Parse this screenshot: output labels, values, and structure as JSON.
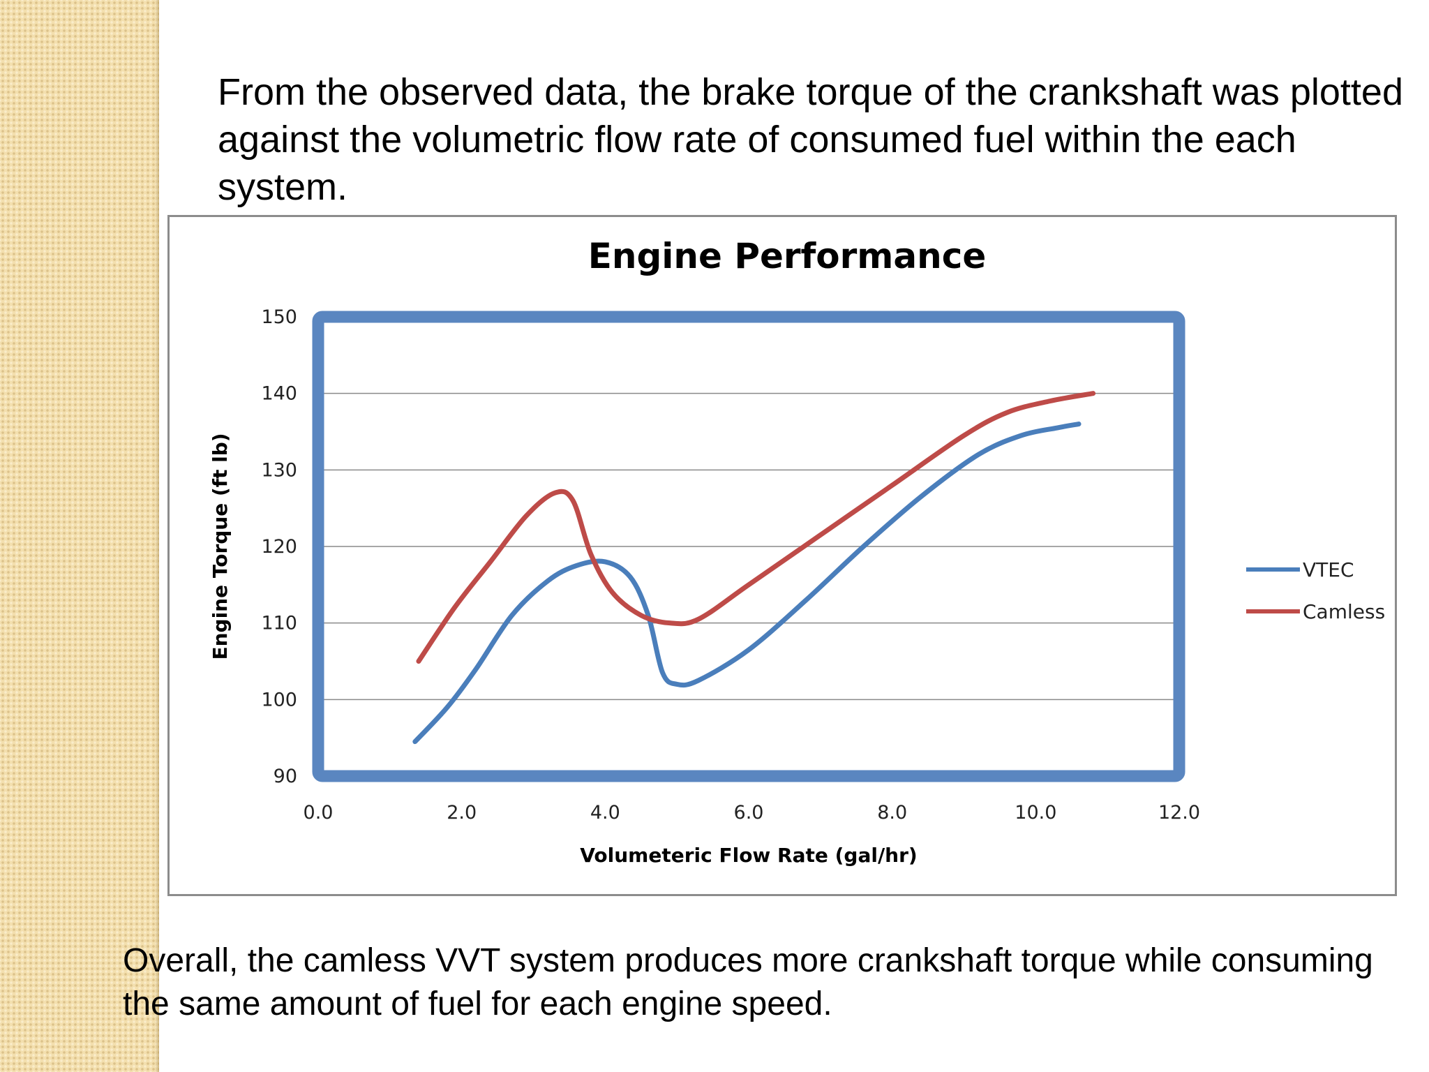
{
  "slide": {
    "intro": "From the observed data, the brake torque of the crankshaft was plotted against the volumetric flow rate of consumed fuel within the each system.",
    "conclusion": "Overall, the camless VVT system produces more crankshaft torque while consuming the same amount of fuel for each engine speed."
  },
  "colors": {
    "plot_border": "#5a86c0",
    "grid": "#8a8a8a"
  },
  "chart_data": {
    "type": "line",
    "title": "Engine Performance",
    "xlabel": "Volumeteric Flow Rate (gal/hr)",
    "ylabel": "Engine Torque (ft lb)",
    "xlim": [
      0,
      12
    ],
    "ylim": [
      90,
      150
    ],
    "xticks": [
      0,
      2,
      4,
      6,
      8,
      10,
      12
    ],
    "xtick_labels": [
      "0.0",
      "2.0",
      "4.0",
      "6.0",
      "8.0",
      "10.0",
      "12.0"
    ],
    "yticks": [
      90,
      100,
      110,
      120,
      130,
      140,
      150
    ],
    "ytick_labels": [
      "90",
      "100",
      "110",
      "120",
      "130",
      "140",
      "150"
    ],
    "grid": "horizontal",
    "legend_position": "right",
    "series": [
      {
        "name": "VTEC",
        "color": "#4a7ebb",
        "x": [
          1.35,
          1.8,
          2.2,
          2.7,
          3.2,
          3.6,
          4.0,
          4.35,
          4.6,
          4.8,
          5.0,
          5.3,
          6.0,
          6.8,
          7.6,
          8.4,
          9.2,
          9.8,
          10.3,
          10.6
        ],
        "y": [
          94.5,
          99,
          104,
          111,
          115.5,
          117.5,
          118,
          116,
          111,
          103.5,
          102,
          102.5,
          106.5,
          113,
          120,
          126.5,
          132,
          134.5,
          135.5,
          136
        ]
      },
      {
        "name": "Camless",
        "color": "#be4b48",
        "x": [
          1.4,
          1.9,
          2.4,
          2.9,
          3.3,
          3.55,
          3.8,
          4.1,
          4.5,
          4.9,
          5.3,
          6.0,
          7.0,
          8.0,
          9.0,
          9.6,
          10.2,
          10.8
        ],
        "y": [
          105,
          112,
          118,
          124,
          127,
          126,
          119,
          114,
          111,
          110,
          110.5,
          115,
          121.5,
          128,
          134.5,
          137.5,
          139,
          140
        ]
      }
    ]
  }
}
